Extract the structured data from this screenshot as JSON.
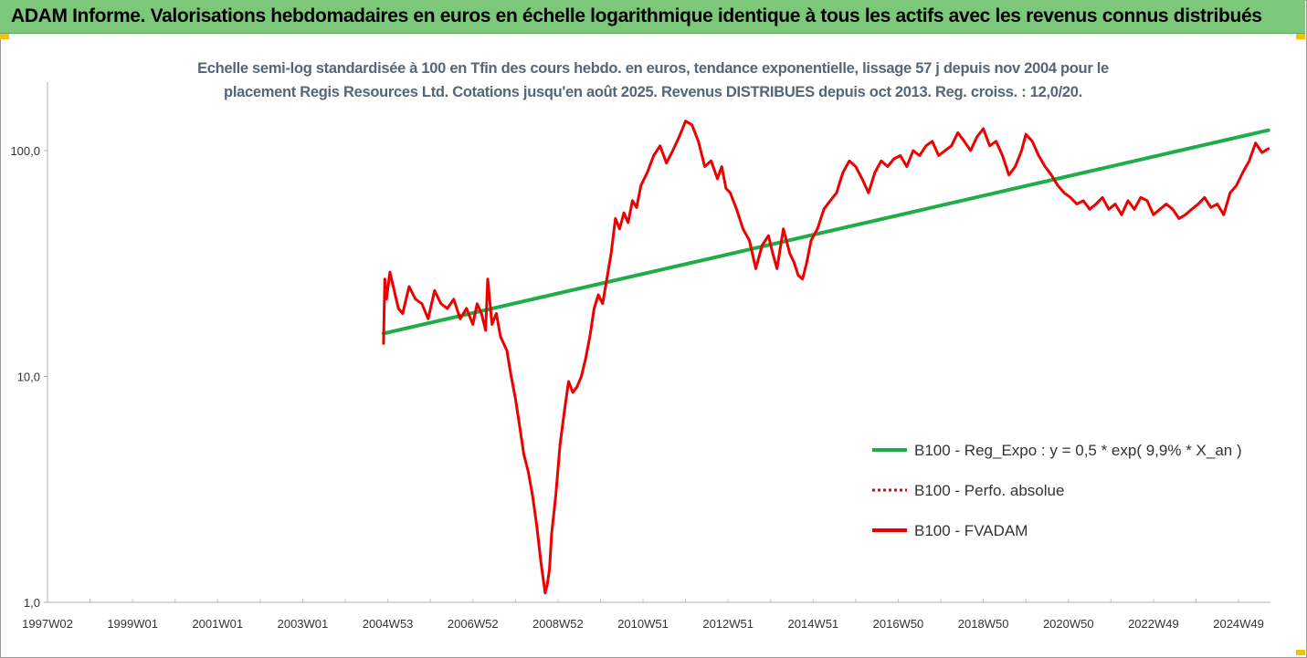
{
  "banner": {
    "title": "ADAM Informe. Valorisations hebdomadaires en euros en échelle logarithmique identique à tous les actifs avec les revenus connus distribués"
  },
  "colors": {
    "banner_bg": "#7dc77b",
    "trend": "#1fad4b",
    "price": "#ee0000",
    "subtitle": "#55657a",
    "corner_marks": "#f2c200"
  },
  "chart_data": {
    "type": "line",
    "title_line1": "Echelle semi-log standardisée à 100 en Tfin des cours hebdo. en euros, tendance exponentielle, lissage 57 j depuis nov 2004 pour le",
    "title_line2": "placement Regis Resources Ltd. Cotations jusqu'en août 2025. Revenus DISTRIBUES depuis oct 2013. Reg. croiss. : 12,0/20.",
    "y_scale": "log",
    "ylim": [
      1,
      200
    ],
    "xlim": [
      1997.0,
      2025.75
    ],
    "y_ticks": [
      {
        "value": 1,
        "label": "1,0"
      },
      {
        "value": 10,
        "label": "10,0"
      },
      {
        "value": 100,
        "label": "100,0"
      }
    ],
    "x_ticks": [
      {
        "x": 1997.0,
        "label": "1997W02"
      },
      {
        "x": 1999.0,
        "label": "1999W01"
      },
      {
        "x": 2001.0,
        "label": "2001W01"
      },
      {
        "x": 2003.0,
        "label": "2003W01"
      },
      {
        "x": 2005.0,
        "label": "2004W53"
      },
      {
        "x": 2007.0,
        "label": "2006W52"
      },
      {
        "x": 2009.0,
        "label": "2008W52"
      },
      {
        "x": 2011.0,
        "label": "2010W51"
      },
      {
        "x": 2013.0,
        "label": "2012W51"
      },
      {
        "x": 2015.0,
        "label": "2014W51"
      },
      {
        "x": 2017.0,
        "label": "2016W50"
      },
      {
        "x": 2019.0,
        "label": "2018W50"
      },
      {
        "x": 2021.0,
        "label": "2020W50"
      },
      {
        "x": 2023.0,
        "label": "2022W49"
      },
      {
        "x": 2025.0,
        "label": "2024W49"
      }
    ],
    "grid": "vertical",
    "legend_position": "right",
    "series": [
      {
        "name": "B100 - Reg_Expo : y = 0,5 * exp( 9,9% *  X_an )",
        "style": "solid-thick",
        "color": "#1fad4b",
        "x": [
          2004.9,
          2025.7
        ],
        "y": [
          15.5,
          123
        ]
      },
      {
        "name": "B100 - Perfo. absolue",
        "style": "dotted",
        "color": "#ee0000",
        "x": [],
        "y": []
      },
      {
        "name": "B100 - FVADAM",
        "style": "solid",
        "color": "#ee0000",
        "x": [
          2004.9,
          2004.93,
          2004.97,
          2005.05,
          2005.15,
          2005.25,
          2005.35,
          2005.5,
          2005.65,
          2005.8,
          2005.95,
          2006.1,
          2006.25,
          2006.4,
          2006.55,
          2006.7,
          2006.85,
          2007.0,
          2007.1,
          2007.2,
          2007.3,
          2007.35,
          2007.45,
          2007.55,
          2007.65,
          2007.8,
          2007.9,
          2008.0,
          2008.1,
          2008.2,
          2008.3,
          2008.4,
          2008.5,
          2008.6,
          2008.7,
          2008.75,
          2008.8,
          2008.85,
          2008.95,
          2009.05,
          2009.15,
          2009.25,
          2009.35,
          2009.45,
          2009.55,
          2009.65,
          2009.75,
          2009.85,
          2009.95,
          2010.05,
          2010.15,
          2010.25,
          2010.35,
          2010.45,
          2010.55,
          2010.65,
          2010.75,
          2010.85,
          2010.95,
          2011.1,
          2011.25,
          2011.4,
          2011.55,
          2011.7,
          2011.85,
          2012.0,
          2012.15,
          2012.3,
          2012.45,
          2012.6,
          2012.75,
          2012.85,
          2012.95,
          2013.05,
          2013.2,
          2013.35,
          2013.5,
          2013.65,
          2013.8,
          2013.95,
          2014.05,
          2014.15,
          2014.3,
          2014.45,
          2014.55,
          2014.65,
          2014.75,
          2014.85,
          2014.95,
          2015.1,
          2015.25,
          2015.4,
          2015.55,
          2015.7,
          2015.85,
          2016.0,
          2016.15,
          2016.3,
          2016.45,
          2016.6,
          2016.75,
          2016.9,
          2017.05,
          2017.2,
          2017.35,
          2017.5,
          2017.65,
          2017.8,
          2017.95,
          2018.1,
          2018.25,
          2018.4,
          2018.55,
          2018.7,
          2018.85,
          2019.0,
          2019.15,
          2019.3,
          2019.45,
          2019.6,
          2019.75,
          2019.9,
          2020.0,
          2020.15,
          2020.3,
          2020.45,
          2020.6,
          2020.75,
          2020.9,
          2021.05,
          2021.2,
          2021.35,
          2021.5,
          2021.65,
          2021.8,
          2021.95,
          2022.1,
          2022.25,
          2022.4,
          2022.55,
          2022.7,
          2022.85,
          2023.0,
          2023.15,
          2023.3,
          2023.45,
          2023.6,
          2023.75,
          2023.9,
          2024.05,
          2024.2,
          2024.35,
          2024.5,
          2024.65,
          2024.8,
          2024.95,
          2025.1,
          2025.25,
          2025.4,
          2025.55,
          2025.7
        ],
        "y": [
          14,
          27,
          22,
          29,
          24,
          20,
          19,
          25,
          22,
          21,
          18,
          24,
          21,
          20,
          22,
          18,
          20,
          17,
          21,
          19,
          16,
          27,
          17,
          19,
          15,
          13,
          10,
          8,
          6,
          4.5,
          3.8,
          3,
          2.2,
          1.5,
          1.1,
          1.2,
          1.4,
          2,
          3,
          5,
          7,
          9.5,
          8.5,
          9,
          10,
          12,
          15,
          20,
          23,
          21,
          27,
          35,
          50,
          45,
          53,
          48,
          60,
          56,
          70,
          80,
          95,
          105,
          88,
          100,
          115,
          135,
          130,
          110,
          85,
          90,
          75,
          85,
          68,
          65,
          55,
          45,
          40,
          30,
          38,
          42,
          35,
          30,
          45,
          35,
          32,
          28,
          27,
          32,
          40,
          45,
          55,
          60,
          65,
          80,
          90,
          85,
          75,
          65,
          80,
          90,
          85,
          92,
          95,
          85,
          100,
          95,
          105,
          110,
          95,
          100,
          105,
          120,
          110,
          100,
          115,
          125,
          105,
          110,
          95,
          78,
          85,
          100,
          118,
          110,
          95,
          85,
          78,
          70,
          65,
          62,
          58,
          60,
          55,
          58,
          62,
          55,
          58,
          52,
          60,
          55,
          62,
          60,
          52,
          55,
          58,
          55,
          50,
          52,
          55,
          58,
          62,
          56,
          58,
          52,
          65,
          70,
          80,
          90,
          108,
          98,
          102
        ]
      }
    ]
  }
}
